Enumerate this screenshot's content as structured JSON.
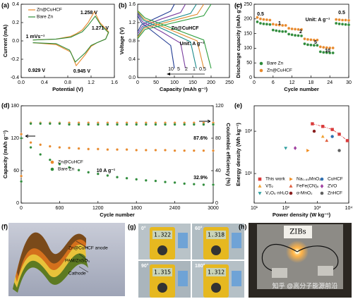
{
  "chart_data": [
    {
      "type": "line",
      "label": "(a)",
      "xlabel": "Potential (V)",
      "ylabel": "Current (mA)",
      "xlim": [
        0,
        1.6
      ],
      "xticks": [
        {
          "value": 0,
          "label": "0.0"
        },
        0.4,
        0.8,
        1.2,
        1.6
      ],
      "ylim": [
        -0.4,
        0.4
      ],
      "yticks": [
        -0.4,
        -0.2,
        {
          "value": 0,
          "label": "0.0"
        },
        0.2,
        0.4
      ],
      "series": [
        {
          "name": "Zn@CuHCF",
          "color": "#e8892c",
          "x": [
            0.2,
            0.6,
            0.85,
            0.95,
            1.05,
            1.15,
            1.258,
            1.35,
            1.5,
            1.45,
            1.3,
            1.2,
            1.1,
            0.945,
            0.85,
            0.6,
            0.2
          ],
          "values": [
            0.01,
            0.02,
            0.05,
            0.08,
            0.12,
            0.2,
            0.32,
            0.2,
            0.1,
            0.02,
            -0.02,
            -0.06,
            -0.15,
            -0.27,
            -0.12,
            -0.04,
            -0.02
          ]
        },
        {
          "name": "Bare Zn",
          "color": "#2e8b3a",
          "x": [
            0.2,
            0.6,
            0.85,
            0.95,
            1.05,
            1.15,
            1.271,
            1.37,
            1.5,
            1.45,
            1.3,
            1.2,
            1.1,
            0.929,
            0.83,
            0.6,
            0.2
          ],
          "values": [
            0.01,
            0.02,
            0.04,
            0.07,
            0.1,
            0.17,
            0.27,
            0.17,
            0.09,
            0.02,
            -0.02,
            -0.05,
            -0.13,
            -0.23,
            -0.1,
            -0.03,
            -0.02
          ]
        }
      ],
      "annotations": [
        {
          "text": "1.258 V",
          "color": "#e8892c"
        },
        {
          "text": "1.271 V",
          "color": "#2e8b3a"
        },
        {
          "text": "0.929 V",
          "color": "#2e8b3a"
        },
        {
          "text": "0.945 V",
          "color": "#e8892c"
        },
        {
          "text": "1 mVs⁻¹",
          "color": "#000000"
        }
      ]
    },
    {
      "type": "line",
      "label": "(b)",
      "xlabel": "Capacity (mAh g⁻¹)",
      "ylabel": "Voltage (V)",
      "xlim": [
        0,
        250
      ],
      "xticks": [
        0,
        50,
        100,
        150,
        200,
        250
      ],
      "ylim": [
        0,
        1.6
      ],
      "yticks": [
        {
          "value": 0,
          "label": "0.0"
        },
        0.4,
        0.8,
        1.2,
        1.6
      ],
      "series": [
        {
          "name": "10",
          "color": "#1f3a93",
          "x": [
            0,
            10,
            50,
            90,
            100,
            null,
            0,
            10,
            50,
            90,
            100
          ],
          "values": [
            1.0,
            1.15,
            1.3,
            1.45,
            1.6,
            null,
            1.35,
            1.2,
            0.95,
            0.7,
            0.2
          ]
        },
        {
          "name": "5",
          "color": "#7b3fa0",
          "x": [
            0,
            13,
            65,
            117,
            130,
            null,
            0,
            13,
            65,
            117,
            130
          ],
          "values": [
            0.95,
            1.12,
            1.28,
            1.42,
            1.6,
            null,
            1.4,
            1.22,
            1.0,
            0.75,
            0.2
          ]
        },
        {
          "name": "2",
          "color": "#1a8a8a",
          "x": [
            0,
            16,
            80,
            144,
            160,
            null,
            0,
            16,
            80,
            144,
            160
          ],
          "values": [
            0.9,
            1.1,
            1.25,
            1.4,
            1.6,
            null,
            1.42,
            1.25,
            1.02,
            0.78,
            0.2
          ]
        },
        {
          "name": "1",
          "color": "#e08a2c",
          "x": [
            0,
            18,
            90,
            162,
            180,
            null,
            0,
            18,
            90,
            162,
            180
          ],
          "values": [
            0.88,
            1.08,
            1.23,
            1.38,
            1.6,
            null,
            1.44,
            1.27,
            1.04,
            0.8,
            0.2
          ]
        },
        {
          "name": "0.5",
          "color": "#2e9e3e",
          "x": [
            0,
            20,
            100,
            180,
            200,
            null,
            0,
            20,
            100,
            180,
            200
          ],
          "values": [
            0.85,
            1.05,
            1.2,
            1.35,
            1.6,
            null,
            1.46,
            1.3,
            1.06,
            0.82,
            0.2
          ]
        }
      ],
      "legend": false,
      "annotations": [
        {
          "text": "Zn@CuHCF",
          "color": "#000000"
        },
        {
          "text": "Unit:  A g⁻¹",
          "color": "#000000"
        }
      ]
    },
    {
      "type": "scatter",
      "label": "(c)",
      "xlabel": "Cycle number",
      "ylabel": "Discharge capacity (mAh g⁻¹)",
      "xlim": [
        0,
        30
      ],
      "xticks": [
        0,
        6,
        12,
        18,
        24,
        30
      ],
      "ylim": [
        0,
        250
      ],
      "yticks": [
        0,
        50,
        100,
        150,
        200,
        250
      ],
      "x": [
        1,
        2,
        3,
        4,
        5,
        6,
        7,
        8,
        9,
        10,
        11,
        12,
        13,
        14,
        15,
        16,
        17,
        18,
        19,
        20,
        21,
        22,
        23,
        24,
        25,
        26,
        27,
        28,
        29,
        30
      ],
      "series": [
        {
          "name": "Bare Zn",
          "color": "#2e8b3a",
          "values": [
            190,
            185,
            183,
            182,
            181,
            162,
            160,
            158,
            157,
            157,
            148,
            146,
            144,
            143,
            142,
            115,
            112,
            111,
            110,
            110,
            88,
            86,
            85,
            84,
            84,
            185,
            183,
            182,
            181,
            180
          ]
        },
        {
          "name": "Zn@CuHCF",
          "color": "#e8892c",
          "values": [
            205,
            200,
            198,
            197,
            196,
            182,
            180,
            179,
            178,
            178,
            168,
            166,
            165,
            164,
            164,
            132,
            130,
            129,
            128,
            128,
            105,
            103,
            102,
            101,
            101,
            198,
            197,
            196,
            196,
            195
          ]
        }
      ],
      "annotations": [
        {
          "text": "0.5",
          "color": "#000000"
        },
        {
          "text": "1",
          "color": "#000000"
        },
        {
          "text": "2",
          "color": "#000000"
        },
        {
          "text": "5",
          "color": "#000000"
        },
        {
          "text": "10",
          "color": "#000000"
        },
        {
          "text": "0.5",
          "color": "#000000"
        },
        {
          "text": "Unit:  A g⁻¹",
          "color": "#000000"
        }
      ]
    },
    {
      "type": "scatter",
      "label": "(d)",
      "xlabel": "Cycle number",
      "ylabel": "Capacity (mAh g⁻¹)",
      "y2label": "Coulombic efficiency (%)",
      "xlim": [
        0,
        3000
      ],
      "xticks": [
        0,
        600,
        1200,
        1800,
        2400,
        3000
      ],
      "ylim": [
        0,
        180
      ],
      "yticks": [
        0,
        60,
        120,
        180
      ],
      "y2lim": [
        0,
        120
      ],
      "y2ticks": [
        0,
        40,
        80,
        120
      ],
      "x": [
        1,
        150,
        300,
        450,
        600,
        750,
        900,
        1050,
        1200,
        1350,
        1500,
        1650,
        1800,
        1950,
        2100,
        2250,
        2400,
        2550,
        2700,
        2850,
        3000
      ],
      "series": [
        {
          "name": "Zn@CuHCF",
          "color": "#e8892c",
          "values": [
            50,
            112,
            108,
            105,
            103,
            102,
            101,
            100,
            100,
            99,
            99,
            99,
            98,
            98,
            98,
            98,
            97,
            97,
            97,
            97,
            97
          ]
        },
        {
          "name": "Bare Zn",
          "color": "#2e8b3a",
          "values": [
            40,
            103,
            90,
            80,
            72,
            66,
            61,
            57,
            54,
            51,
            48,
            46,
            44,
            42,
            41,
            39,
            38,
            36,
            35,
            34,
            34
          ]
        },
        {
          "color": "#e8892c",
          "axis": "y2",
          "values": [
            85,
            99,
            99,
            99,
            99,
            99,
            99,
            99,
            99,
            99,
            99,
            99,
            99,
            99,
            99,
            99,
            99,
            99,
            99,
            99,
            99
          ]
        },
        {
          "color": "#2e8b3a",
          "axis": "y2",
          "values": [
            80,
            98,
            98,
            98,
            98,
            97,
            97,
            97,
            97,
            97,
            97,
            97,
            97,
            97,
            97,
            97,
            97,
            97,
            97,
            97,
            97
          ]
        }
      ],
      "annotations": [
        {
          "text": "87.6%",
          "color": "#000000"
        },
        {
          "text": "32.9%",
          "color": "#000000"
        },
        {
          "text": "10 A g⁻¹",
          "color": "#000000"
        }
      ]
    },
    {
      "type": "scatter",
      "label": "(e)",
      "xlabel": "Power density (W kg⁻¹)",
      "ylabel": "Energy density (Wh kg⁻¹)",
      "xscale": "log",
      "yscale": "log",
      "xlim": [
        10,
        10000
      ],
      "xticks": [
        {
          "value": 10,
          "label": "10¹"
        },
        {
          "value": 100,
          "label": "10²"
        },
        {
          "value": 1000,
          "label": "10³"
        },
        {
          "value": 10000,
          "label": "10⁴"
        }
      ],
      "ylim": [
        2,
        400
      ],
      "yticks": [
        {
          "value": 10,
          "label": "10¹"
        },
        {
          "value": 100,
          "label": "10²"
        }
      ],
      "series": [
        {
          "name": "This work",
          "color": "#d93a3a",
          "marker": "square",
          "line": true,
          "x": [
            700,
            1500,
            3000,
            5000,
            9000
          ],
          "values": [
            150,
            130,
            110,
            85,
            60
          ]
        },
        {
          "name": "Na₀.₆₅MnO₂",
          "color": "#f08c1e",
          "marker": "triangle-right",
          "x": [
            500
          ],
          "values": [
            35
          ]
        },
        {
          "name": "CuHCF",
          "color": "#2f6fb0",
          "marker": "circle",
          "x": [
            3000
          ],
          "values": [
            75
          ]
        },
        {
          "name": "VS₂",
          "color": "#f0a030",
          "marker": "triangle",
          "x": [
            1500
          ],
          "values": [
            75
          ]
        },
        {
          "name": "FeFe(CN)₆",
          "color": "#e06040",
          "marker": "triangle",
          "x": [
            2000
          ],
          "values": [
            60
          ]
        },
        {
          "name": "ZVO",
          "color": "#a040a0",
          "marker": "diamond",
          "x": [
            200
          ],
          "values": [
            40
          ]
        },
        {
          "name": "V₂O₅·nH₂O",
          "color": "#30a0a0",
          "marker": "triangle-down",
          "x": [
            100
          ],
          "values": [
            40
          ]
        },
        {
          "name": "α-MnO₂",
          "color": "#8a1f1f",
          "marker": "circle",
          "x": [
            800
          ],
          "values": [
            100
          ]
        },
        {
          "name": "ZnHCF",
          "color": "#606060",
          "marker": "circle",
          "x": [
            5000
          ],
          "values": [
            35
          ]
        }
      ],
      "annotations": []
    }
  ],
  "panels": {
    "f": {
      "label": "(f)",
      "texts": [
        "Zn@CuHCF anode",
        "PAM/ZnSO₄",
        "Cathode"
      ]
    },
    "g": {
      "label": "(g)",
      "angles": [
        "0°",
        "60°",
        "90°",
        "180°"
      ],
      "readings": [
        "1.322",
        "1.318",
        "1.315",
        "1.312"
      ]
    },
    "h": {
      "label": "(h)",
      "sign": "ZIBs"
    }
  },
  "watermark": "知乎 @高分子能源前沿"
}
